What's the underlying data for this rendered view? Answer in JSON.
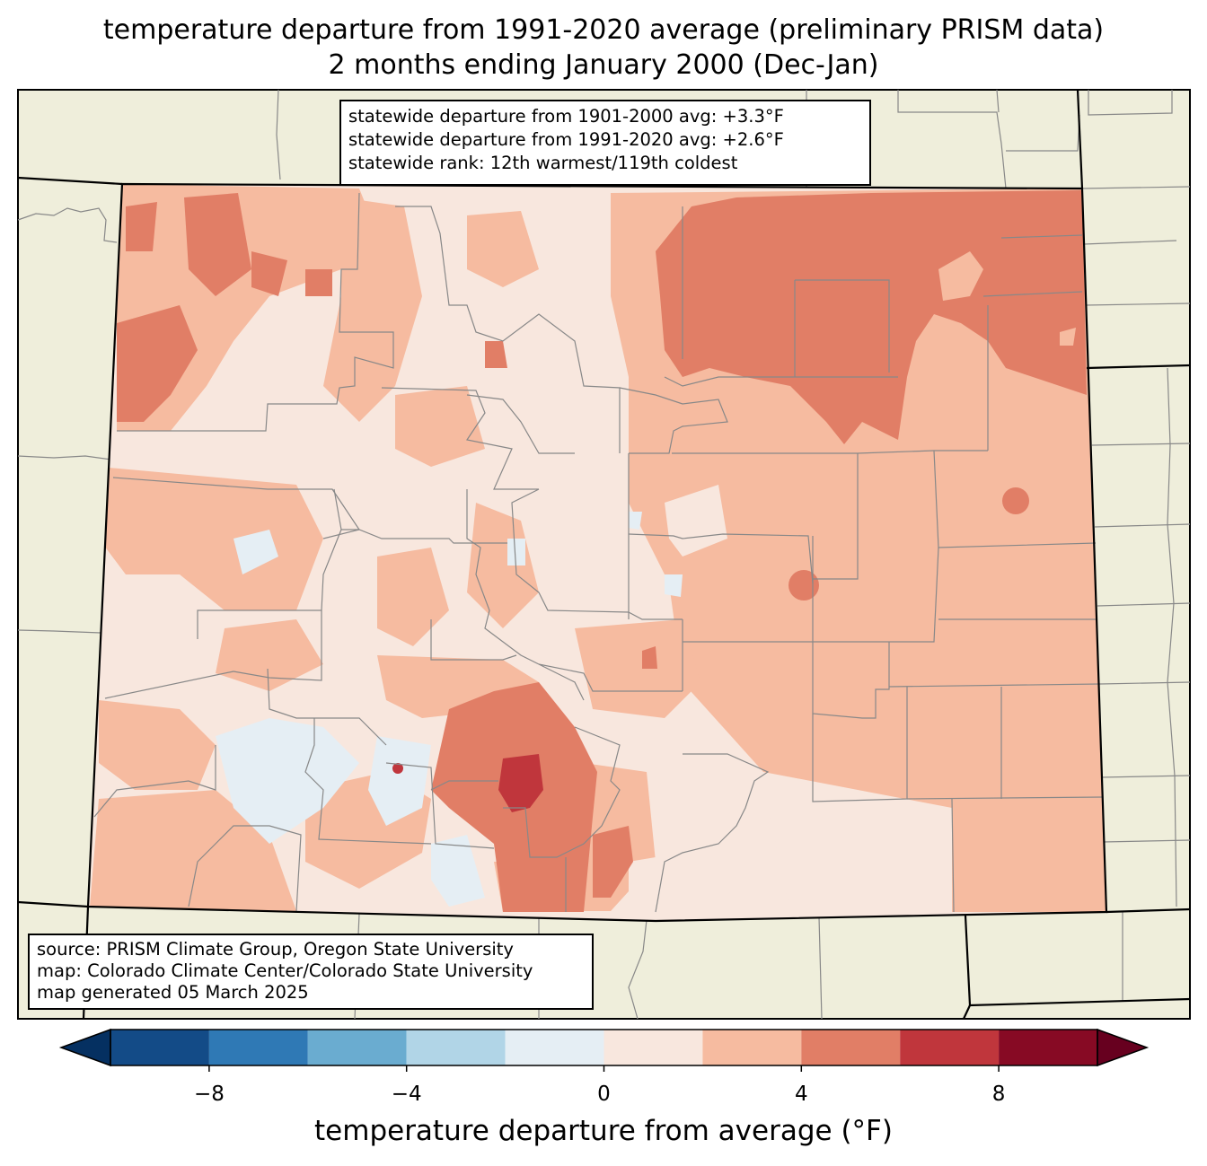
{
  "title": {
    "line1": "temperature departure from 1991-2020 average (preliminary PRISM data)",
    "line2": "2 months ending January 2000 (Dec-Jan)"
  },
  "stats": {
    "line1": "statewide departure from 1901-2000 avg: +3.3°F",
    "line2": "statewide departure from 1991-2020 avg: +2.6°F",
    "line3": "statewide rank: 12th warmest/119th coldest"
  },
  "source": {
    "line1": "source: PRISM Climate Group, Oregon State University",
    "line2": "map: Colorado Climate Center/Colorado State University",
    "line3": "map generated 05 March 2025"
  },
  "colorbar": {
    "label": "temperature departure from average (°F)",
    "ticks": [
      "−8",
      "−4",
      "0",
      "4",
      "8"
    ],
    "tick_values": [
      -8,
      -4,
      0,
      4,
      8
    ],
    "range": [
      -10,
      10
    ],
    "bins": [
      {
        "from": -10,
        "to": -8,
        "color": "#134b87"
      },
      {
        "from": -8,
        "to": -6,
        "color": "#2f79b5"
      },
      {
        "from": -6,
        "to": -4,
        "color": "#6aacd0"
      },
      {
        "from": -4,
        "to": -2,
        "color": "#b1d5e7"
      },
      {
        "from": -2,
        "to": 0,
        "color": "#e5eef4"
      },
      {
        "from": 0,
        "to": 2,
        "color": "#f8e7de"
      },
      {
        "from": 2,
        "to": 4,
        "color": "#f6bba0"
      },
      {
        "from": 4,
        "to": 6,
        "color": "#e17e66"
      },
      {
        "from": 6,
        "to": 8,
        "color": "#c0363c"
      },
      {
        "from": 8,
        "to": 10,
        "color": "#870a24"
      }
    ],
    "under_color": "#053061",
    "over_color": "#67001f"
  },
  "map_colors": {
    "land_outside": "#efeedb",
    "county_line": "#888888",
    "state_line": "#000000"
  }
}
